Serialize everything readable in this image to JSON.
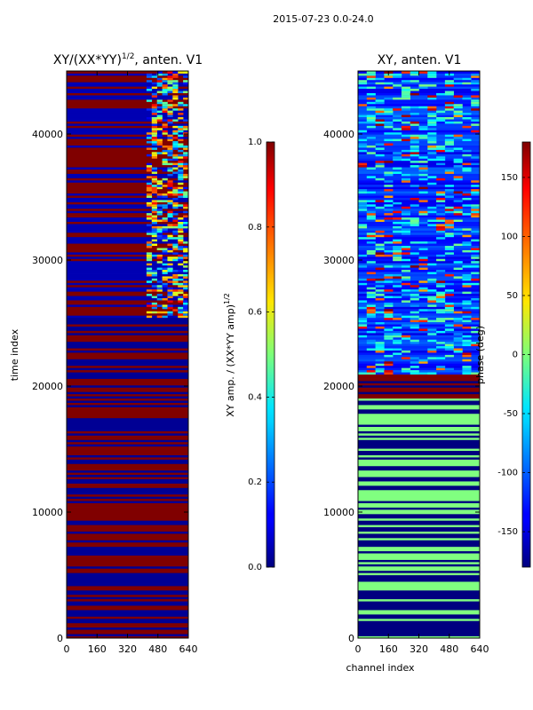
{
  "figure_title": "2015-07-23 0.0-24.0",
  "chart_data": [
    {
      "type": "heatmap",
      "title": "XY/(XX*YY)",
      "title_sup": "1/2",
      "title_suffix": ", anten. V1",
      "xlabel": "",
      "ylabel": "time index",
      "xlim": [
        0,
        640
      ],
      "ylim": [
        0,
        45000
      ],
      "x_ticks": [
        0,
        160,
        320,
        480,
        640
      ],
      "y_ticks": [
        0,
        10000,
        20000,
        30000,
        40000
      ],
      "colorbar": {
        "label": "XY amp. / (XX*YY amp)",
        "label_sup": "1/2",
        "range": [
          0.0,
          1.0
        ],
        "ticks": [
          "0.0",
          "0.2",
          "0.4",
          "0.6",
          "0.8",
          "1.0"
        ],
        "colormap": "jet"
      },
      "summary_by_time": [
        {
          "from": 0,
          "to": 25500,
          "pattern": "horizontal bands alternating ~1.0 and ~0.0 across all channels"
        },
        {
          "from": 25500,
          "to": 45000,
          "pattern": "bands of ~1.0 and ~0.0 for channels 0-420; mixed 0.1-0.9 values for channels 420-640"
        }
      ]
    },
    {
      "type": "heatmap",
      "title": "XY, anten. V1",
      "xlabel": "channel index",
      "ylabel": "",
      "xlim": [
        0,
        640
      ],
      "ylim": [
        0,
        45000
      ],
      "x_ticks": [
        0,
        160,
        320,
        480,
        640
      ],
      "y_ticks": [
        0,
        10000,
        20000,
        30000,
        40000
      ],
      "colorbar": {
        "label": "phase (deg)",
        "range": [
          -180,
          180
        ],
        "ticks": [
          "-150",
          "-100",
          "-50",
          "0",
          "50",
          "100",
          "150"
        ],
        "colormap": "jet"
      },
      "summary_by_time": [
        {
          "from": 0,
          "to": 19000,
          "pattern": "horizontal bands alternating ~0 deg (green) and -180 deg (dark blue)"
        },
        {
          "from": 19000,
          "to": 21000,
          "pattern": "bands of ~180 deg (dark red) and -180 deg"
        },
        {
          "from": 21000,
          "to": 45000,
          "pattern": "mostly -120 to -160 deg with scattered values up to 150 deg"
        }
      ]
    }
  ]
}
